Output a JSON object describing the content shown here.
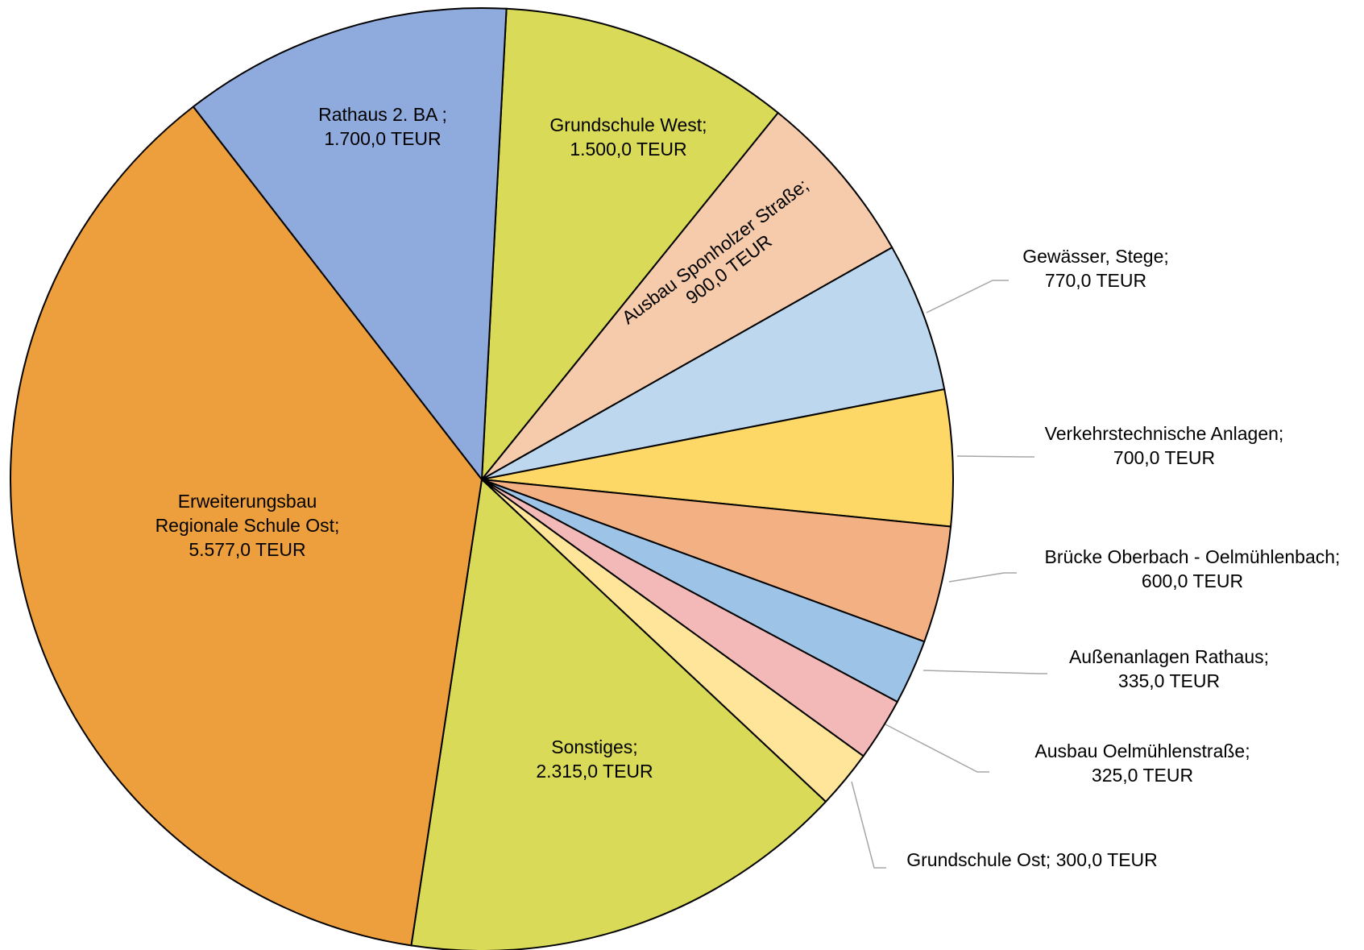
{
  "chart_data": {
    "type": "pie",
    "start_angle_deg": 3,
    "direction": "clockwise",
    "slices": [
      {
        "label_lines": [
          "Grundschule West;",
          "1.500,0 TEUR"
        ],
        "value": 1500.0,
        "color": "#D9DA57"
      },
      {
        "label_lines": [
          "Ausbau Sponholzer Straße;",
          "900,0 TEUR"
        ],
        "value": 900.0,
        "color": "#F6CBAC"
      },
      {
        "label_lines": [
          "Gewässer, Stege;",
          "770,0 TEUR"
        ],
        "value": 770.0,
        "color": "#BDD7EE"
      },
      {
        "label_lines": [
          "Verkehrstechnische Anlagen;",
          "700,0 TEUR"
        ],
        "value": 700.0,
        "color": "#FDD866"
      },
      {
        "label_lines": [
          "Brücke Oberbach - Oelmühlenbach;",
          "600,0 TEUR"
        ],
        "value": 600.0,
        "color": "#F3B183"
      },
      {
        "label_lines": [
          "Außenanlagen Rathaus;",
          "335,0 TEUR"
        ],
        "value": 335.0,
        "color": "#9DC3E6"
      },
      {
        "label_lines": [
          "Ausbau Oelmühlenstraße;",
          "325,0 TEUR"
        ],
        "value": 325.0,
        "color": "#F2B9B8"
      },
      {
        "label_lines": [
          "Grundschule Ost; 300,0 TEUR"
        ],
        "value": 300.0,
        "color": "#FEE599"
      },
      {
        "label_lines": [
          "Sonstiges;",
          "2.315,0 TEUR"
        ],
        "value": 2315.0,
        "color": "#D9DA57"
      },
      {
        "label_lines": [
          "Erweiterungsbau",
          "Regionale Schule Ost;",
          "5.577,0 TEUR"
        ],
        "value": 5577.0,
        "color": "#ED9F3D"
      },
      {
        "label_lines": [
          "Rathaus 2. BA ;",
          "1.700,0 TEUR"
        ],
        "value": 1700.0,
        "color": "#8FAADC"
      }
    ],
    "unit": "TEUR"
  }
}
